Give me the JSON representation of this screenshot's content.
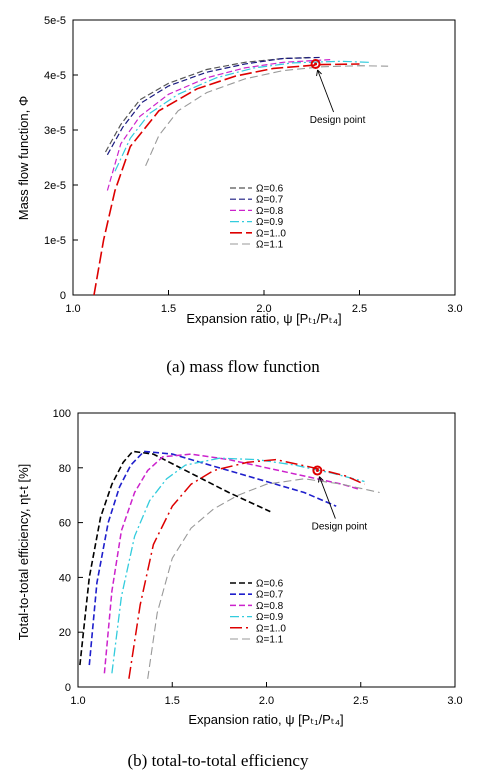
{
  "chart_data": [
    {
      "type": "line",
      "caption": "(a)  mass  flow  function",
      "xlabel": "Expansion ratio, ψ [Pₜ₁/Pₜ₄]",
      "ylabel": "Mass flow function, Φ",
      "xlim": [
        1.0,
        3.0
      ],
      "ylim": [
        0,
        5e-05
      ],
      "xticks": [
        1.0,
        1.5,
        2.0,
        2.5,
        3.0
      ],
      "xtick_labels": [
        "1.0",
        "1.5",
        "2.0",
        "2.5",
        "3.0"
      ],
      "yticks": [
        0,
        1e-05,
        2e-05,
        3e-05,
        4e-05,
        5e-05
      ],
      "ytick_labels": [
        "0",
        "1e-5",
        "2e-5",
        "3e-5",
        "4e-5",
        "5e-5"
      ],
      "legend_position": "bottom-center",
      "grid": false,
      "annotation": {
        "text": "Design point",
        "x": 2.27,
        "y": 4.2e-05
      },
      "series": [
        {
          "name": "Ω=0.6",
          "color": "#555555",
          "x": [
            1.17,
            1.25,
            1.35,
            1.5,
            1.7,
            1.9,
            2.1,
            2.25
          ],
          "y": [
            2.6e-05,
            3.1e-05,
            3.55e-05,
            3.85e-05,
            4.1e-05,
            4.23e-05,
            4.3e-05,
            4.32e-05
          ]
        },
        {
          "name": "Ω=0.7",
          "color": "#1a1a80",
          "x": [
            1.18,
            1.26,
            1.36,
            1.5,
            1.7,
            1.9,
            2.1,
            2.3
          ],
          "y": [
            2.55e-05,
            3.05e-05,
            3.5e-05,
            3.8e-05,
            4.05e-05,
            4.2e-05,
            4.3e-05,
            4.32e-05
          ]
        },
        {
          "name": "Ω=0.8",
          "color": "#cc22cc",
          "x": [
            1.18,
            1.25,
            1.35,
            1.5,
            1.7,
            1.9,
            2.1,
            2.35
          ],
          "y": [
            1.9e-05,
            2.75e-05,
            3.25e-05,
            3.65e-05,
            3.95e-05,
            4.13e-05,
            4.23e-05,
            4.28e-05
          ]
        },
        {
          "name": "Ω=0.9",
          "color": "#33ccdd",
          "x": [
            1.22,
            1.3,
            1.4,
            1.55,
            1.75,
            1.95,
            2.15,
            2.4,
            2.55
          ],
          "y": [
            2.25e-05,
            2.85e-05,
            3.3e-05,
            3.65e-05,
            3.95e-05,
            4.13e-05,
            4.22e-05,
            4.25e-05,
            4.23e-05
          ]
        },
        {
          "name": "Ω=1..0",
          "color": "#dd0000",
          "x": [
            1.11,
            1.16,
            1.22,
            1.3,
            1.45,
            1.65,
            1.85,
            2.05,
            2.3,
            2.5
          ],
          "y": [
            0.0,
            1e-05,
            1.9e-05,
            2.7e-05,
            3.35e-05,
            3.75e-05,
            3.98e-05,
            4.12e-05,
            4.19e-05,
            4.2e-05
          ]
        },
        {
          "name": "Ω=1.1",
          "color": "#999999",
          "x": [
            1.38,
            1.45,
            1.55,
            1.7,
            1.9,
            2.1,
            2.3,
            2.5,
            2.65
          ],
          "y": [
            2.35e-05,
            2.9e-05,
            3.35e-05,
            3.68e-05,
            3.93e-05,
            4.08e-05,
            4.15e-05,
            4.17e-05,
            4.16e-05
          ]
        }
      ]
    },
    {
      "type": "line",
      "caption": "(b)  total-to-total  efficiency",
      "xlabel": "Expansion ratio,  ψ [Pₜ₁/Pₜ₄]",
      "ylabel": "Total-to-total efficiency, ηt-t [%]",
      "xlim": [
        1.0,
        3.0
      ],
      "ylim": [
        0,
        100
      ],
      "xticks": [
        1.0,
        1.5,
        2.0,
        2.5,
        3.0
      ],
      "xtick_labels": [
        "1.0",
        "1.5",
        "2.0",
        "2.5",
        "3.0"
      ],
      "yticks": [
        0,
        20,
        40,
        60,
        80,
        100
      ],
      "ytick_labels": [
        "0",
        "20",
        "40",
        "60",
        "80",
        "100"
      ],
      "legend_position": "bottom-center",
      "grid": false,
      "annotation": {
        "text": "Design point",
        "x": 2.27,
        "y": 79
      },
      "series": [
        {
          "name": "Ω=0.6",
          "color": "#000000",
          "x": [
            1.01,
            1.06,
            1.12,
            1.18,
            1.24,
            1.29,
            1.4,
            1.6,
            1.8,
            2.02
          ],
          "y": [
            8,
            40,
            62,
            74,
            82,
            86,
            85,
            78,
            71,
            64
          ]
        },
        {
          "name": "Ω=0.7",
          "color": "#1f1fcc",
          "x": [
            1.06,
            1.1,
            1.16,
            1.22,
            1.28,
            1.35,
            1.5,
            1.7,
            1.95,
            2.2,
            2.37
          ],
          "y": [
            8,
            38,
            60,
            73,
            81,
            86,
            85,
            81,
            76,
            71,
            66
          ]
        },
        {
          "name": "Ω=0.8",
          "color": "#cc22cc",
          "x": [
            1.14,
            1.18,
            1.23,
            1.3,
            1.37,
            1.45,
            1.6,
            1.8,
            2.0,
            2.2,
            2.4,
            2.5
          ],
          "y": [
            5,
            35,
            57,
            71,
            79,
            84,
            85,
            83,
            80,
            77,
            74,
            72
          ]
        },
        {
          "name": "Ω=0.9",
          "color": "#33ccdd",
          "x": [
            1.18,
            1.23,
            1.3,
            1.38,
            1.47,
            1.57,
            1.75,
            1.95,
            2.15,
            2.35,
            2.52
          ],
          "y": [
            5,
            33,
            55,
            68,
            76,
            81,
            83.5,
            83,
            81,
            78,
            75
          ]
        },
        {
          "name": "Ω=1..0",
          "color": "#dd0000",
          "x": [
            1.27,
            1.33,
            1.4,
            1.5,
            1.6,
            1.72,
            1.9,
            2.05,
            2.25,
            2.42,
            2.52
          ],
          "y": [
            3,
            30,
            52,
            66,
            74,
            79,
            82,
            83,
            80,
            77,
            74
          ]
        },
        {
          "name": "Ω=1.1",
          "color": "#999999",
          "x": [
            1.37,
            1.42,
            1.5,
            1.6,
            1.72,
            1.85,
            2.0,
            2.2,
            2.4,
            2.6
          ],
          "y": [
            3,
            27,
            47,
            58,
            65,
            70,
            74,
            76,
            74,
            71
          ]
        }
      ]
    }
  ]
}
